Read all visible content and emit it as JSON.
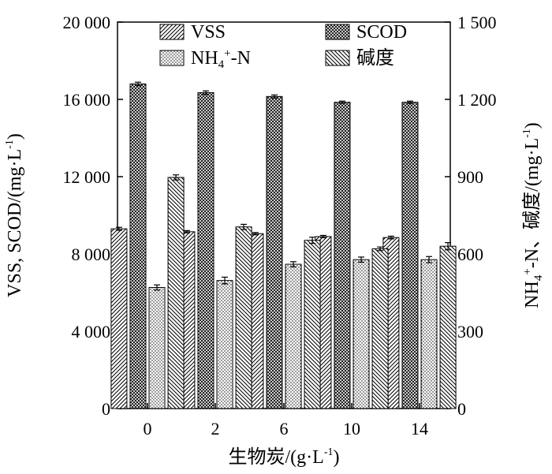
{
  "chart_data": {
    "type": "bar",
    "categories": [
      "0",
      "2",
      "6",
      "10",
      "14"
    ],
    "series": [
      {
        "name": "VSS",
        "axis": "left",
        "pattern": "diag-fwd",
        "values": [
          9300,
          9150,
          9050,
          8900,
          8850
        ],
        "errors": [
          80,
          60,
          60,
          60,
          70
        ]
      },
      {
        "name": "SCOD",
        "axis": "left",
        "pattern": "crosshatch",
        "values": [
          16800,
          16350,
          16150,
          15850,
          15850
        ],
        "errors": [
          90,
          90,
          80,
          60,
          60
        ]
      },
      {
        "name": "NH4+-N",
        "axis": "right",
        "pattern": "dots",
        "values": [
          470,
          497,
          560,
          578,
          578
        ],
        "errors": [
          10,
          13,
          10,
          10,
          12
        ]
      },
      {
        "name": "碱度",
        "axis": "right",
        "pattern": "diag-back",
        "values": [
          897,
          705,
          653,
          620,
          630
        ],
        "errors": [
          10,
          10,
          12,
          7,
          14
        ]
      }
    ],
    "xlabel": "生物炭/(g·L⁻¹)",
    "ylabel": "VSS, SCOD/(mg·L⁻¹)",
    "y2label": "NH₄⁺-N、碱度/(mg·L⁻¹)",
    "ylim": [
      0,
      20000
    ],
    "y2lim": [
      0,
      1500
    ],
    "yticks": [
      "0",
      "4 000",
      "8 000",
      "12 000",
      "16 000",
      "20 000"
    ],
    "y2ticks": [
      "0",
      "300",
      "600",
      "900",
      "1 200",
      "1 500"
    ],
    "legend": {
      "placement": "top-inside",
      "labels": {
        "vss": "VSS",
        "scod": "SCOD",
        "nh4_main": "NH",
        "nh4_sub": "4",
        "nh4_sup": "+",
        "nh4_tail": "-N",
        "alk": "碱度"
      }
    },
    "ylabel_parts": {
      "main": "VSS, SCOD/(mg·L",
      "sup": "-1",
      "tail": ")"
    },
    "y2label_parts": {
      "a": "NH",
      "sub": "4",
      "sup": "+",
      "b": "-N、碱度/(mg·L",
      "sup2": "-1",
      "c": ")"
    },
    "xlabel_parts": {
      "main": "生物炭/(g·L",
      "sup": "-1",
      "tail": ")"
    },
    "grid": false
  }
}
